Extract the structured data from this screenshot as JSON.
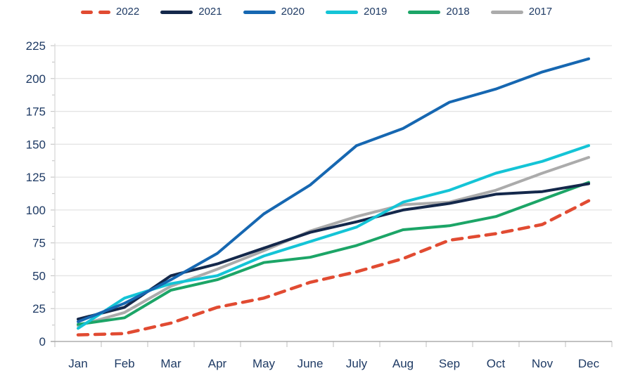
{
  "chart_data": {
    "type": "line",
    "title": "",
    "x_categories": [
      "Jan",
      "Feb",
      "Mar",
      "Apr",
      "May",
      "June",
      "July",
      "Aug",
      "Sep",
      "Oct",
      "Nov",
      "Dec"
    ],
    "y_axis": {
      "min": 0,
      "max": 225,
      "tick_step": 25,
      "minor_tick_step": 12.5,
      "tick_labels": [
        "0",
        "25",
        "50",
        "75",
        "100",
        "125",
        "150",
        "175",
        "200",
        "225"
      ]
    },
    "grid": "horizontal",
    "legend_position": "top-center",
    "series": [
      {
        "name": "2022",
        "color": "#E14B32",
        "style": "dashed",
        "values": [
          5,
          6,
          14,
          26,
          33,
          45,
          53,
          63,
          77,
          82,
          89,
          107
        ]
      },
      {
        "name": "2021",
        "color": "#14284B",
        "style": "solid",
        "values": [
          17,
          26,
          50,
          59,
          71,
          83,
          91,
          100,
          105,
          112,
          114,
          120
        ]
      },
      {
        "name": "2020",
        "color": "#1667B1",
        "style": "solid",
        "values": [
          15,
          29,
          47,
          67,
          97,
          119,
          149,
          162,
          182,
          192,
          205,
          215
        ]
      },
      {
        "name": "2019",
        "color": "#14C4D6",
        "style": "solid",
        "values": [
          10,
          33,
          44,
          50,
          65,
          76,
          87,
          106,
          115,
          128,
          137,
          149
        ]
      },
      {
        "name": "2018",
        "color": "#1CA567",
        "style": "solid",
        "values": [
          13,
          18,
          39,
          47,
          60,
          64,
          73,
          85,
          88,
          95,
          108,
          121
        ]
      },
      {
        "name": "2017",
        "color": "#ABABAB",
        "style": "solid",
        "values": [
          12,
          22,
          42,
          55,
          69,
          84,
          95,
          104,
          106,
          115,
          128,
          140
        ]
      }
    ],
    "colors": {
      "axis_text": "#1E3A64",
      "gridline": "#E4E4E4",
      "left_axis": "#D9D9D9",
      "bottom_axis": "#9E9E9E",
      "tick": "#C9C9C9"
    }
  }
}
